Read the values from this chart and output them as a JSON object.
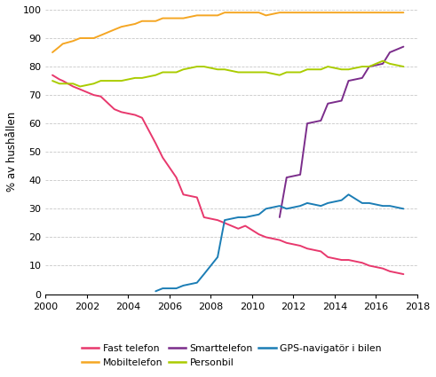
{
  "ylabel": "% av hushållen",
  "xlim": [
    2000,
    2018
  ],
  "ylim": [
    0,
    100
  ],
  "yticks": [
    0,
    10,
    20,
    30,
    40,
    50,
    60,
    70,
    80,
    90,
    100
  ],
  "xticks": [
    2000,
    2002,
    2004,
    2006,
    2008,
    2010,
    2012,
    2014,
    2016,
    2018
  ],
  "series": {
    "Fast telefon": {
      "color": "#E8386D",
      "data": [
        [
          2000.33,
          77
        ],
        [
          2000.67,
          75.5
        ],
        [
          2000.83,
          75
        ],
        [
          2001.33,
          73
        ],
        [
          2001.67,
          72
        ],
        [
          2002.33,
          70
        ],
        [
          2002.67,
          69.5
        ],
        [
          2003.33,
          65
        ],
        [
          2003.67,
          64
        ],
        [
          2004.33,
          63
        ],
        [
          2004.67,
          62
        ],
        [
          2005.33,
          53
        ],
        [
          2005.67,
          48
        ],
        [
          2006.33,
          41
        ],
        [
          2006.67,
          35
        ],
        [
          2007.33,
          34
        ],
        [
          2007.67,
          27
        ],
        [
          2008.33,
          26
        ],
        [
          2008.67,
          25
        ],
        [
          2009.33,
          23
        ],
        [
          2009.67,
          24
        ],
        [
          2010.33,
          21
        ],
        [
          2010.67,
          20
        ],
        [
          2011.33,
          19
        ],
        [
          2011.67,
          18
        ],
        [
          2012.33,
          17
        ],
        [
          2012.67,
          16
        ],
        [
          2013.33,
          15
        ],
        [
          2013.67,
          13
        ],
        [
          2014.33,
          12
        ],
        [
          2014.67,
          12
        ],
        [
          2015.33,
          11
        ],
        [
          2015.67,
          10
        ],
        [
          2016.33,
          9
        ],
        [
          2016.67,
          8
        ],
        [
          2017.33,
          7
        ]
      ]
    },
    "Mobiltelefon": {
      "color": "#F5A623",
      "data": [
        [
          2000.33,
          85
        ],
        [
          2000.67,
          87
        ],
        [
          2000.83,
          88
        ],
        [
          2001.33,
          89
        ],
        [
          2001.67,
          90
        ],
        [
          2002.33,
          90
        ],
        [
          2002.67,
          91
        ],
        [
          2003.33,
          93
        ],
        [
          2003.67,
          94
        ],
        [
          2004.33,
          95
        ],
        [
          2004.67,
          96
        ],
        [
          2005.33,
          96
        ],
        [
          2005.67,
          97
        ],
        [
          2006.33,
          97
        ],
        [
          2006.67,
          97
        ],
        [
          2007.33,
          98
        ],
        [
          2007.67,
          98
        ],
        [
          2008.33,
          98
        ],
        [
          2008.67,
          99
        ],
        [
          2009.33,
          99
        ],
        [
          2009.67,
          99
        ],
        [
          2010.33,
          99
        ],
        [
          2010.67,
          98
        ],
        [
          2011.33,
          99
        ],
        [
          2011.67,
          99
        ],
        [
          2012.33,
          99
        ],
        [
          2012.67,
          99
        ],
        [
          2013.33,
          99
        ],
        [
          2013.67,
          99
        ],
        [
          2014.33,
          99
        ],
        [
          2014.67,
          99
        ],
        [
          2015.33,
          99
        ],
        [
          2015.67,
          99
        ],
        [
          2016.33,
          99
        ],
        [
          2016.67,
          99
        ],
        [
          2017.33,
          99
        ]
      ]
    },
    "Smarttelefon": {
      "color": "#7B2D8B",
      "data": [
        [
          2011.33,
          27
        ],
        [
          2011.67,
          41
        ],
        [
          2012.33,
          42
        ],
        [
          2012.67,
          60
        ],
        [
          2013.33,
          61
        ],
        [
          2013.67,
          67
        ],
        [
          2014.33,
          68
        ],
        [
          2014.67,
          75
        ],
        [
          2015.33,
          76
        ],
        [
          2015.67,
          80
        ],
        [
          2016.33,
          81
        ],
        [
          2016.67,
          85
        ],
        [
          2017.33,
          87
        ]
      ]
    },
    "Personbil": {
      "color": "#AACC00",
      "data": [
        [
          2000.33,
          75
        ],
        [
          2000.67,
          74
        ],
        [
          2000.83,
          74
        ],
        [
          2001.33,
          74
        ],
        [
          2001.67,
          73
        ],
        [
          2002.33,
          74
        ],
        [
          2002.67,
          75
        ],
        [
          2003.33,
          75
        ],
        [
          2003.67,
          75
        ],
        [
          2004.33,
          76
        ],
        [
          2004.67,
          76
        ],
        [
          2005.33,
          77
        ],
        [
          2005.67,
          78
        ],
        [
          2006.33,
          78
        ],
        [
          2006.67,
          79
        ],
        [
          2007.33,
          80
        ],
        [
          2007.67,
          80
        ],
        [
          2008.33,
          79
        ],
        [
          2008.67,
          79
        ],
        [
          2009.33,
          78
        ],
        [
          2009.67,
          78
        ],
        [
          2010.33,
          78
        ],
        [
          2010.67,
          78
        ],
        [
          2011.33,
          77
        ],
        [
          2011.67,
          78
        ],
        [
          2012.33,
          78
        ],
        [
          2012.67,
          79
        ],
        [
          2013.33,
          79
        ],
        [
          2013.67,
          80
        ],
        [
          2014.33,
          79
        ],
        [
          2014.67,
          79
        ],
        [
          2015.33,
          80
        ],
        [
          2015.67,
          80
        ],
        [
          2016.33,
          82
        ],
        [
          2016.67,
          81
        ],
        [
          2017.33,
          80
        ]
      ]
    },
    "GPS-navigatör i bilen": {
      "color": "#1B7DB5",
      "data": [
        [
          2005.33,
          1
        ],
        [
          2005.67,
          2
        ],
        [
          2006.33,
          2
        ],
        [
          2006.67,
          3
        ],
        [
          2007.33,
          4
        ],
        [
          2007.67,
          7
        ],
        [
          2008.33,
          13
        ],
        [
          2008.67,
          26
        ],
        [
          2009.33,
          27
        ],
        [
          2009.67,
          27
        ],
        [
          2010.33,
          28
        ],
        [
          2010.67,
          30
        ],
        [
          2011.33,
          31
        ],
        [
          2011.67,
          30
        ],
        [
          2012.33,
          31
        ],
        [
          2012.67,
          32
        ],
        [
          2013.33,
          31
        ],
        [
          2013.67,
          32
        ],
        [
          2014.33,
          33
        ],
        [
          2014.67,
          35
        ],
        [
          2015.33,
          32
        ],
        [
          2015.67,
          32
        ],
        [
          2016.33,
          31
        ],
        [
          2016.67,
          31
        ],
        [
          2017.33,
          30
        ]
      ]
    }
  },
  "legend": [
    {
      "label": "Fast telefon",
      "color": "#E8386D"
    },
    {
      "label": "Mobiltelefon",
      "color": "#F5A623"
    },
    {
      "label": "Smarttelefon",
      "color": "#7B2D8B"
    },
    {
      "label": "Personbil",
      "color": "#AACC00"
    },
    {
      "label": "GPS-navigatör i bilen",
      "color": "#1B7DB5"
    }
  ],
  "grid_color": "#C8C8C8",
  "background_color": "#FFFFFF",
  "linewidth": 1.4
}
